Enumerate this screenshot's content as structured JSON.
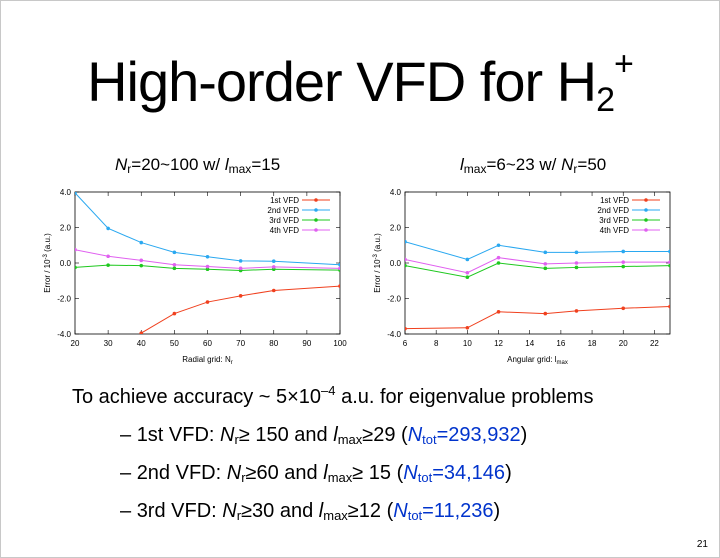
{
  "title": {
    "main": "High-order VFD for H",
    "sub": "2",
    "sup": "+"
  },
  "left_caption": {
    "n": "N",
    "n_sub": "r",
    "range": "=20~100 w/ ",
    "l": "l",
    "l_sub": "max",
    "tail": "=15"
  },
  "right_caption": {
    "l": "l",
    "l_sub": "max",
    "range": "=6~23 w/ ",
    "n": "N",
    "n_sub": "r",
    "tail": "=50"
  },
  "summary": {
    "pre": "To achieve accuracy ~ 5×10",
    "exp": "–4",
    "post": " a.u. for eigenvalue problems"
  },
  "bullets": [
    {
      "dash": "– ",
      "label": "1st VFD: ",
      "n": "N",
      "n_sub": "r",
      "n_val": "≥ 150 and ",
      "l": "l",
      "l_sub": "max",
      "l_val": "≥29 ",
      "open": "(",
      "ntot": "N",
      "ntot_sub": "tot",
      "ntot_val": "=293,932",
      "close": ")"
    },
    {
      "dash": "– ",
      "label": "2nd VFD: ",
      "n": "N",
      "n_sub": "r",
      "n_val": "≥60 and ",
      "l": "l",
      "l_sub": "max",
      "l_val": "≥ 15 ",
      "open": "(",
      "ntot": "N",
      "ntot_sub": "tot",
      "ntot_val": "=34,146",
      "close": ")"
    },
    {
      "dash": "– ",
      "label": "3rd VFD: ",
      "n": "N",
      "n_sub": "r",
      "n_val": "≥30 and ",
      "l": "l",
      "l_sub": "max",
      "l_val": "≥12 ",
      "open": "(",
      "ntot": "N",
      "ntot_sub": "tot",
      "ntot_val": "=11,236",
      "close": ")"
    }
  ],
  "page_number": "21",
  "colors": {
    "1st": "#f0401e",
    "2nd": "#2aa8f0",
    "3rd": "#1ec81e",
    "4th": "#e060f0"
  },
  "chart_data": [
    {
      "type": "line",
      "xlabel": "Radial grid: N",
      "xlabel_sub": "r",
      "ylabel": "Error / 10",
      "ylabel_sup": "-3",
      "ylabel_unit": " (a.u.)",
      "xlim": [
        20,
        100
      ],
      "ylim": [
        -4,
        4
      ],
      "xticks": [
        20,
        30,
        40,
        50,
        60,
        70,
        80,
        90,
        100
      ],
      "yticks": [
        -4,
        -2,
        0,
        2,
        4
      ],
      "ytick_labels": [
        "-4.0",
        "-2.0",
        "0.0",
        "2.0",
        "4.0"
      ],
      "legend_position": "top-right",
      "series": [
        {
          "name": "1st VFD",
          "x": [
            40,
            50,
            60,
            70,
            80,
            100
          ],
          "y": [
            -3.95,
            -2.85,
            -2.2,
            -1.85,
            -1.55,
            -1.3
          ]
        },
        {
          "name": "2nd VFD",
          "x": [
            20,
            30,
            40,
            50,
            60,
            70,
            80,
            100
          ],
          "y": [
            3.95,
            1.95,
            1.15,
            0.6,
            0.35,
            0.12,
            0.1,
            -0.1
          ]
        },
        {
          "name": "3rd VFD",
          "x": [
            20,
            30,
            40,
            50,
            60,
            70,
            80,
            100
          ],
          "y": [
            -0.25,
            -0.12,
            -0.15,
            -0.3,
            -0.35,
            -0.42,
            -0.35,
            -0.4
          ]
        },
        {
          "name": "4th VFD",
          "x": [
            20,
            30,
            40,
            50,
            60,
            70,
            80,
            100
          ],
          "y": [
            0.75,
            0.38,
            0.15,
            -0.1,
            -0.2,
            -0.3,
            -0.22,
            -0.3
          ]
        }
      ]
    },
    {
      "type": "line",
      "xlabel": "Angular grid: l",
      "xlabel_sub": "max",
      "ylabel": "Error / 10",
      "ylabel_sup": "-3",
      "ylabel_unit": " (a.u.)",
      "xlim": [
        6,
        23
      ],
      "ylim": [
        -4,
        4
      ],
      "xticks": [
        6,
        8,
        10,
        12,
        14,
        16,
        18,
        20,
        22
      ],
      "yticks": [
        -4,
        -2,
        0,
        2,
        4
      ],
      "ytick_labels": [
        "-4.0",
        "-2.0",
        "0.0",
        "2.0",
        "4.0"
      ],
      "legend_position": "top-right",
      "series": [
        {
          "name": "1st VFD",
          "x": [
            6,
            10,
            12,
            15,
            17,
            20,
            23
          ],
          "y": [
            -3.7,
            -3.65,
            -2.75,
            -2.85,
            -2.7,
            -2.55,
            -2.45
          ]
        },
        {
          "name": "2nd VFD",
          "x": [
            6,
            10,
            12,
            15,
            17,
            20,
            23
          ],
          "y": [
            1.2,
            0.2,
            1.0,
            0.6,
            0.6,
            0.65,
            0.65
          ]
        },
        {
          "name": "3rd VFD",
          "x": [
            6,
            10,
            12,
            15,
            17,
            20,
            23
          ],
          "y": [
            -0.15,
            -0.8,
            0.0,
            -0.3,
            -0.25,
            -0.2,
            -0.15
          ]
        },
        {
          "name": "4th VFD",
          "x": [
            6,
            10,
            12,
            15,
            17,
            20,
            23
          ],
          "y": [
            0.2,
            -0.55,
            0.3,
            -0.05,
            0.0,
            0.05,
            0.05
          ]
        }
      ]
    }
  ]
}
